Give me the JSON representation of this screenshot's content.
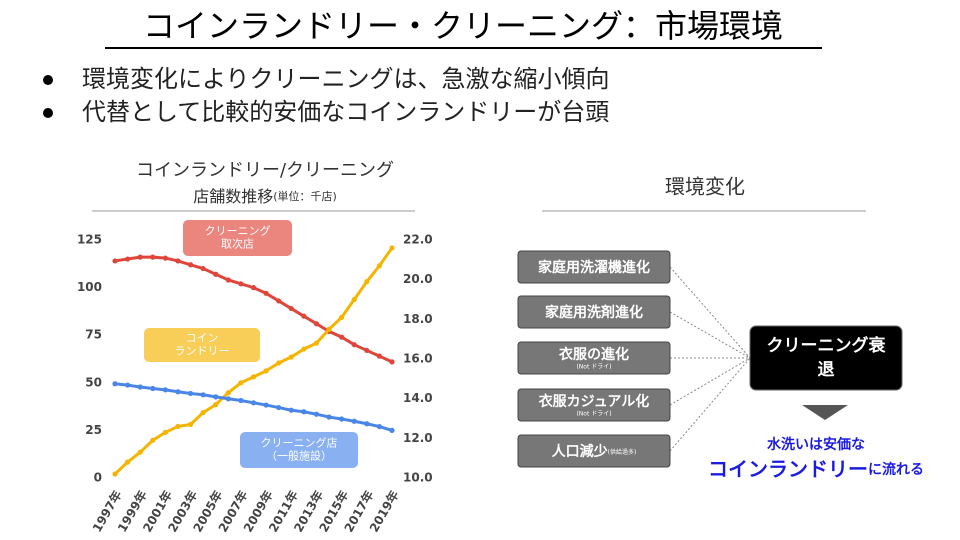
{
  "header": {
    "title": "コインランドリー・クリーニング：市場環境",
    "bullets": [
      "環境変化によりクリーニングは、急激な縮小傾向",
      "代替として比較的安価なコインランドリーが台頭"
    ]
  },
  "chart_data": {
    "type": "line",
    "title": [
      "コインランドリー/クリーニング",
      "店舗数推移"
    ],
    "unit": "(単位：千店)",
    "categories": [
      "1997年",
      null,
      "1999年",
      null,
      "2001年",
      null,
      "2003年",
      null,
      "2005年",
      null,
      "2007年",
      null,
      "2009年",
      null,
      "2011年",
      null,
      "2013年",
      null,
      "2015年",
      null,
      "2017年",
      null,
      "2019年"
    ],
    "series": [
      {
        "name": "クリーニング\n取次店",
        "color": "#e0453a",
        "values": [
          114,
          115,
          116,
          116,
          115.5,
          114,
          112,
          110,
          107,
          104,
          102,
          100,
          97,
          93,
          89,
          85,
          81,
          77,
          74,
          70,
          67,
          64,
          61
        ]
      },
      {
        "name": "コイン\nランドリー",
        "color": "#f4b400",
        "axis": "y2",
        "values": [
          10.2,
          10.8,
          11.3,
          11.9,
          12.3,
          12.6,
          12.7,
          13.3,
          13.7,
          14.3,
          14.8,
          15.1,
          15.4,
          15.8,
          16.1,
          16.5,
          16.8,
          17.5,
          18.1,
          19.0,
          19.9,
          20.7,
          21.6
        ]
      },
      {
        "name": "クリーニング店\n（一般施設）",
        "color": "#4a86e8",
        "values": [
          49.5,
          48.8,
          47.8,
          47.0,
          46.3,
          45.3,
          44.4,
          43.7,
          42.6,
          41.6,
          40.7,
          39.5,
          38.3,
          37.0,
          35.6,
          34.8,
          33.5,
          32.0,
          31.0,
          29.8,
          28.5,
          27.0,
          25.0
        ]
      }
    ],
    "ylim": [
      0,
      125
    ],
    "yticks": [
      0,
      25,
      50,
      75,
      100,
      125
    ],
    "y2lim": [
      10,
      22
    ],
    "y2ticks": [
      {
        "value": 10,
        "label": "10.0"
      },
      {
        "value": 12,
        "label": "12.0"
      },
      {
        "value": 14,
        "label": "14.0"
      },
      {
        "value": 16,
        "label": "16.0"
      },
      {
        "value": 18,
        "label": "18.0"
      },
      {
        "value": 20,
        "label": "20.0"
      },
      {
        "value": 22,
        "label": "22.0"
      }
    ],
    "grid": false
  },
  "diagram": {
    "title": "環境変化",
    "factors": [
      {
        "label": "家庭用洗濯機進化"
      },
      {
        "label": "家庭用洗剤進化"
      },
      {
        "label": "衣服の進化",
        "note": "(Not ドライ)"
      },
      {
        "label": "衣服カジュアル化",
        "note": "(Not ドライ)"
      },
      {
        "label": "人口減少",
        "note": "(供給過多)"
      }
    ],
    "result": [
      "クリーニング衰",
      "退"
    ],
    "conclusion": {
      "line1": "水洗いは安価な",
      "emphasis": "コインランドリー",
      "suffix": "に流れる"
    }
  }
}
